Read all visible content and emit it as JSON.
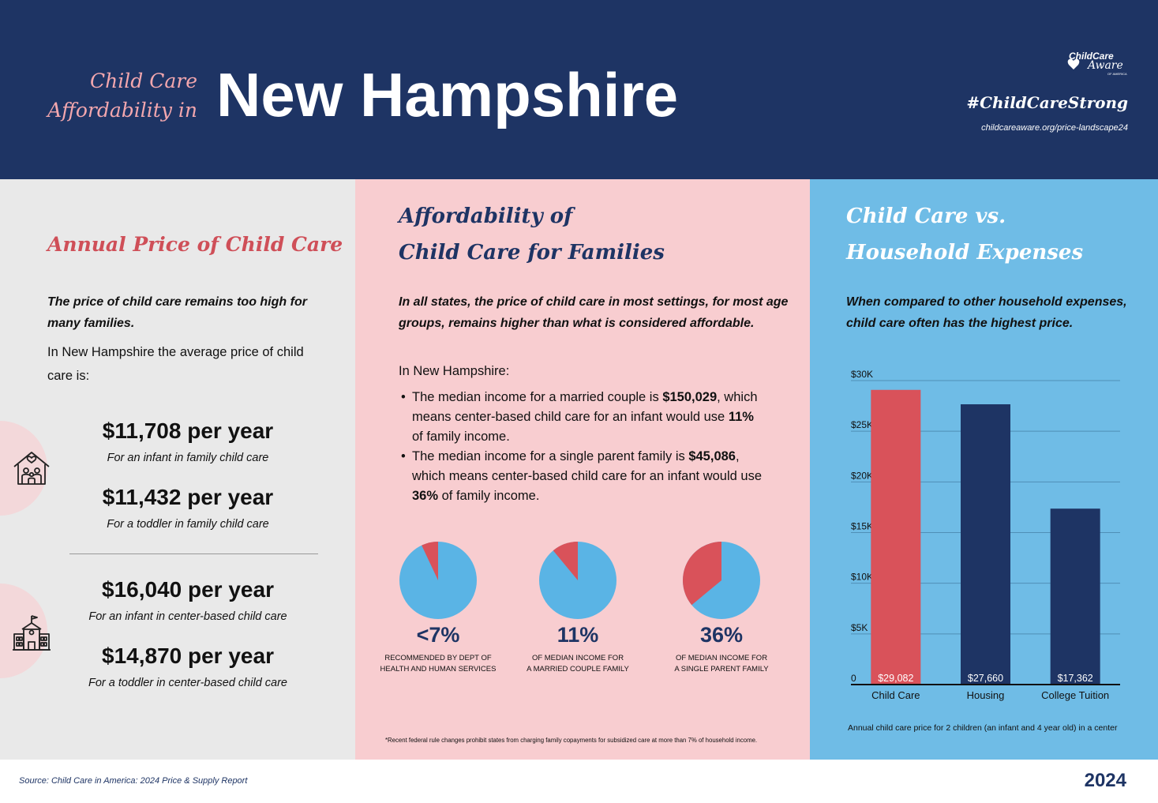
{
  "header": {
    "subtitle_line1": "Child Care",
    "subtitle_line2": "Affordability in",
    "title": "New Hampshire",
    "logo_text_1": "ChildCare",
    "logo_text_2": "Aware",
    "logo_text_3": "OF AMERICA",
    "hashtag": "#ChildCareStrong",
    "url": "childcareaware.org/price-landscape24"
  },
  "panel1": {
    "title": "Annual Price of Child Care",
    "lead": "The price of child care remains too high for many families.",
    "body": "In New Hampshire the average price of child care is:",
    "icons": [
      "family-home-icon",
      "school-building-icon"
    ],
    "prices": [
      {
        "amount": "$11,708 per year",
        "caption": "For an infant in family child care"
      },
      {
        "amount": "$11,432 per year",
        "caption": "For a toddler in family child care"
      },
      {
        "amount": "$16,040 per year",
        "caption": "For an infant in center-based child care"
      },
      {
        "amount": "$14,870 per year",
        "caption": "For a toddler in center-based child care"
      }
    ]
  },
  "panel2": {
    "title_line1": "Affordability of",
    "title_line2": "Child Care for Families",
    "lead": "In all states, the price of child care in most settings, for most age groups, remains higher than what is considered affordable.",
    "intro": "In New Hampshire:",
    "bullets": [
      {
        "pre": "The median income for a married couple is ",
        "income": "$150,029",
        "mid": ", which means center-based child care for an infant would use ",
        "pct": "11%",
        "post": " of family income."
      },
      {
        "pre": "The median income for a single parent family is ",
        "income": "$45,086",
        "mid": ", which means center-based child care for an infant would use ",
        "pct": "36%",
        "post": " of family income."
      }
    ],
    "pies": [
      {
        "value": 7,
        "label": "<7%",
        "caption_line1": "RECOMMENDED BY DEPT OF",
        "caption_line2": "HEALTH AND HUMAN SERVICES"
      },
      {
        "value": 11,
        "label": "11%",
        "caption_line1": "OF MEDIAN INCOME FOR",
        "caption_line2": "A MARRIED COUPLE FAMILY"
      },
      {
        "value": 36,
        "label": "36%",
        "caption_line1": "OF MEDIAN INCOME FOR",
        "caption_line2": "A SINGLE PARENT FAMILY"
      }
    ],
    "pie_colors": {
      "share": "#d9525a",
      "rest": "#5ab4e5"
    },
    "footnote": "*Recent federal rule changes prohibit states from charging family copayments for subsidized care at more than 7% of household income."
  },
  "panel3": {
    "title_line1": "Child Care vs.",
    "title_line2": "Household Expenses",
    "lead": "When compared to other household expenses, child care often has the highest price.",
    "footnote": "Annual child care price for 2 children (an infant and 4 year old) in a center"
  },
  "chart_data": {
    "type": "bar",
    "categories": [
      "Child Care",
      "Housing",
      "College Tuition"
    ],
    "values": [
      29082,
      27660,
      17362
    ],
    "data_labels": [
      "$29,082",
      "$27,660",
      "$17,362"
    ],
    "colors": [
      "#d9525a",
      "#1e3464",
      "#1e3464"
    ],
    "ylim": [
      0,
      30000
    ],
    "yticks": [
      0,
      5000,
      10000,
      15000,
      20000,
      25000,
      30000
    ],
    "ytick_labels": [
      "0",
      "$5K",
      "$10K",
      "$15K",
      "$20K",
      "$25K",
      "$30K"
    ],
    "grid": true,
    "title": "",
    "xlabel": "",
    "ylabel": ""
  },
  "footer": {
    "source": "Source: Child Care in America: 2024 Price & Supply Report",
    "year": "2024"
  }
}
